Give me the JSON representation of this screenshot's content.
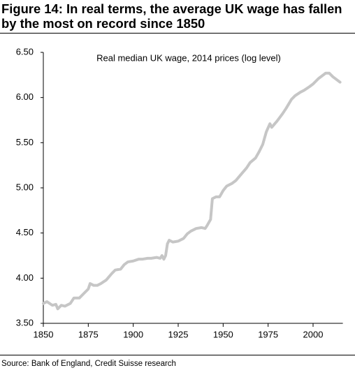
{
  "chart_data": {
    "type": "line",
    "title": "Figure 14: In real terms, the average UK wage has fallen by the most on record since 1850",
    "subtitle": "Real median UK wage, 2014 prices (log level)",
    "source": "Source: Bank of England, Credit Suisse research",
    "x": [
      1850,
      1852,
      1855,
      1857,
      1858,
      1860,
      1862,
      1865,
      1867,
      1870,
      1872,
      1875,
      1876,
      1878,
      1880,
      1882,
      1885,
      1888,
      1890,
      1893,
      1895,
      1897,
      1900,
      1903,
      1905,
      1908,
      1910,
      1913,
      1915,
      1916,
      1917,
      1918,
      1919,
      1920,
      1922,
      1925,
      1928,
      1930,
      1932,
      1935,
      1938,
      1940,
      1941,
      1943,
      1944,
      1946,
      1948,
      1950,
      1952,
      1955,
      1957,
      1960,
      1963,
      1965,
      1968,
      1970,
      1972,
      1974,
      1976,
      1977,
      1980,
      1983,
      1985,
      1988,
      1990,
      1993,
      1995,
      1998,
      2000,
      2003,
      2005,
      2007,
      2009,
      2011,
      2013,
      2015
    ],
    "values": [
      3.72,
      3.74,
      3.7,
      3.71,
      3.66,
      3.7,
      3.69,
      3.72,
      3.78,
      3.78,
      3.82,
      3.88,
      3.94,
      3.92,
      3.92,
      3.94,
      3.98,
      4.05,
      4.09,
      4.1,
      4.15,
      4.18,
      4.19,
      4.21,
      4.21,
      4.22,
      4.22,
      4.23,
      4.22,
      4.25,
      4.21,
      4.25,
      4.38,
      4.42,
      4.4,
      4.41,
      4.44,
      4.49,
      4.52,
      4.55,
      4.56,
      4.55,
      4.58,
      4.65,
      4.88,
      4.9,
      4.9,
      4.97,
      5.02,
      5.05,
      5.08,
      5.15,
      5.22,
      5.28,
      5.33,
      5.4,
      5.48,
      5.62,
      5.71,
      5.67,
      5.74,
      5.82,
      5.88,
      5.98,
      6.02,
      6.06,
      6.08,
      6.12,
      6.15,
      6.21,
      6.24,
      6.27,
      6.27,
      6.23,
      6.2,
      6.17
    ],
    "color": "#c6c6c6",
    "xlim": [
      1850,
      2015
    ],
    "xticks": [
      1850,
      1875,
      1900,
      1925,
      1950,
      1975,
      2000
    ],
    "ylim": [
      3.5,
      6.5
    ],
    "yticks": [
      {
        "value": 3.5,
        "label": "3.50"
      },
      {
        "value": 4,
        "label": "4.00"
      },
      {
        "value": 4.5,
        "label": "4.50"
      },
      {
        "value": 5,
        "label": "5.00"
      },
      {
        "value": 5.5,
        "label": "5.50"
      },
      {
        "value": 6,
        "label": "6.00"
      },
      {
        "value": 6.5,
        "label": "6.50"
      }
    ],
    "grid": false
  }
}
